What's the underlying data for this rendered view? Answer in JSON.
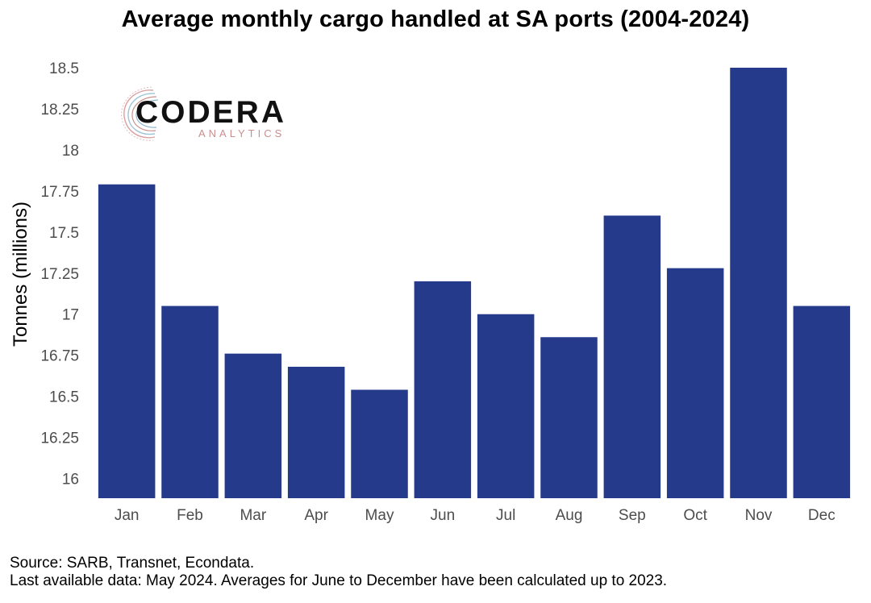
{
  "chart_data": {
    "type": "bar",
    "title": "Average monthly cargo handled at SA ports (2004-2024)",
    "ylabel": "Tonnes (millions)",
    "xlabel": "",
    "categories": [
      "Jan",
      "Feb",
      "Mar",
      "Apr",
      "May",
      "Jun",
      "Jul",
      "Aug",
      "Sep",
      "Oct",
      "Nov",
      "Dec"
    ],
    "values": [
      17.79,
      17.05,
      16.76,
      16.68,
      16.54,
      17.2,
      17.0,
      16.86,
      17.6,
      17.28,
      18.5,
      17.05
    ],
    "yticks": [
      "16",
      "16.25",
      "16.5",
      "16.75",
      "17",
      "17.25",
      "17.5",
      "17.75",
      "18",
      "18.25",
      "18.5"
    ],
    "ylim": [
      15.88,
      18.5
    ],
    "grid": false,
    "bar_color": "#263a8c"
  },
  "logo": {
    "name": "CODERA",
    "sub": "ANALYTICS"
  },
  "footer": {
    "source": "Source: SARB, Transnet, Econdata.",
    "note": "Last available data: May 2024. Averages for June to December have been calculated up to 2023."
  }
}
